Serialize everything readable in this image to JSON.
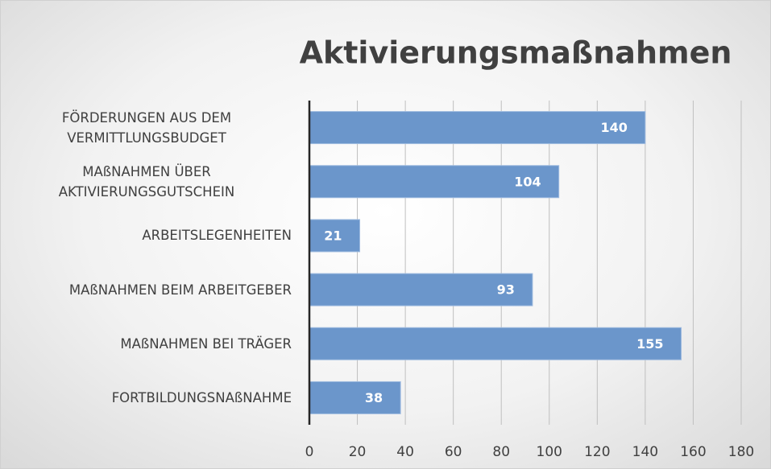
{
  "chart_data": {
    "type": "barh",
    "title": "Aktivierungsmaßnahmen",
    "categories": [
      "FÖRDERUNGEN AUS DEM VERMITTLUNGSBUDGET",
      "MAßNAHMEN ÜBER AKTIVIERUNGSGUTSCHEIN",
      "ARBEITSLEGENHEITEN",
      "MAßNAHMEN BEIM ARBEITGEBER",
      "MAßNAHMEN BEI TRÄGER",
      "FORTBILDUNGSNAßNAHME"
    ],
    "values": [
      140,
      104,
      21,
      93,
      155,
      38
    ],
    "color": "#6b96cb",
    "xlim": [
      0,
      180
    ],
    "xticks": [
      0,
      20,
      40,
      60,
      80,
      100,
      120,
      140,
      160,
      180
    ],
    "grid": true
  }
}
